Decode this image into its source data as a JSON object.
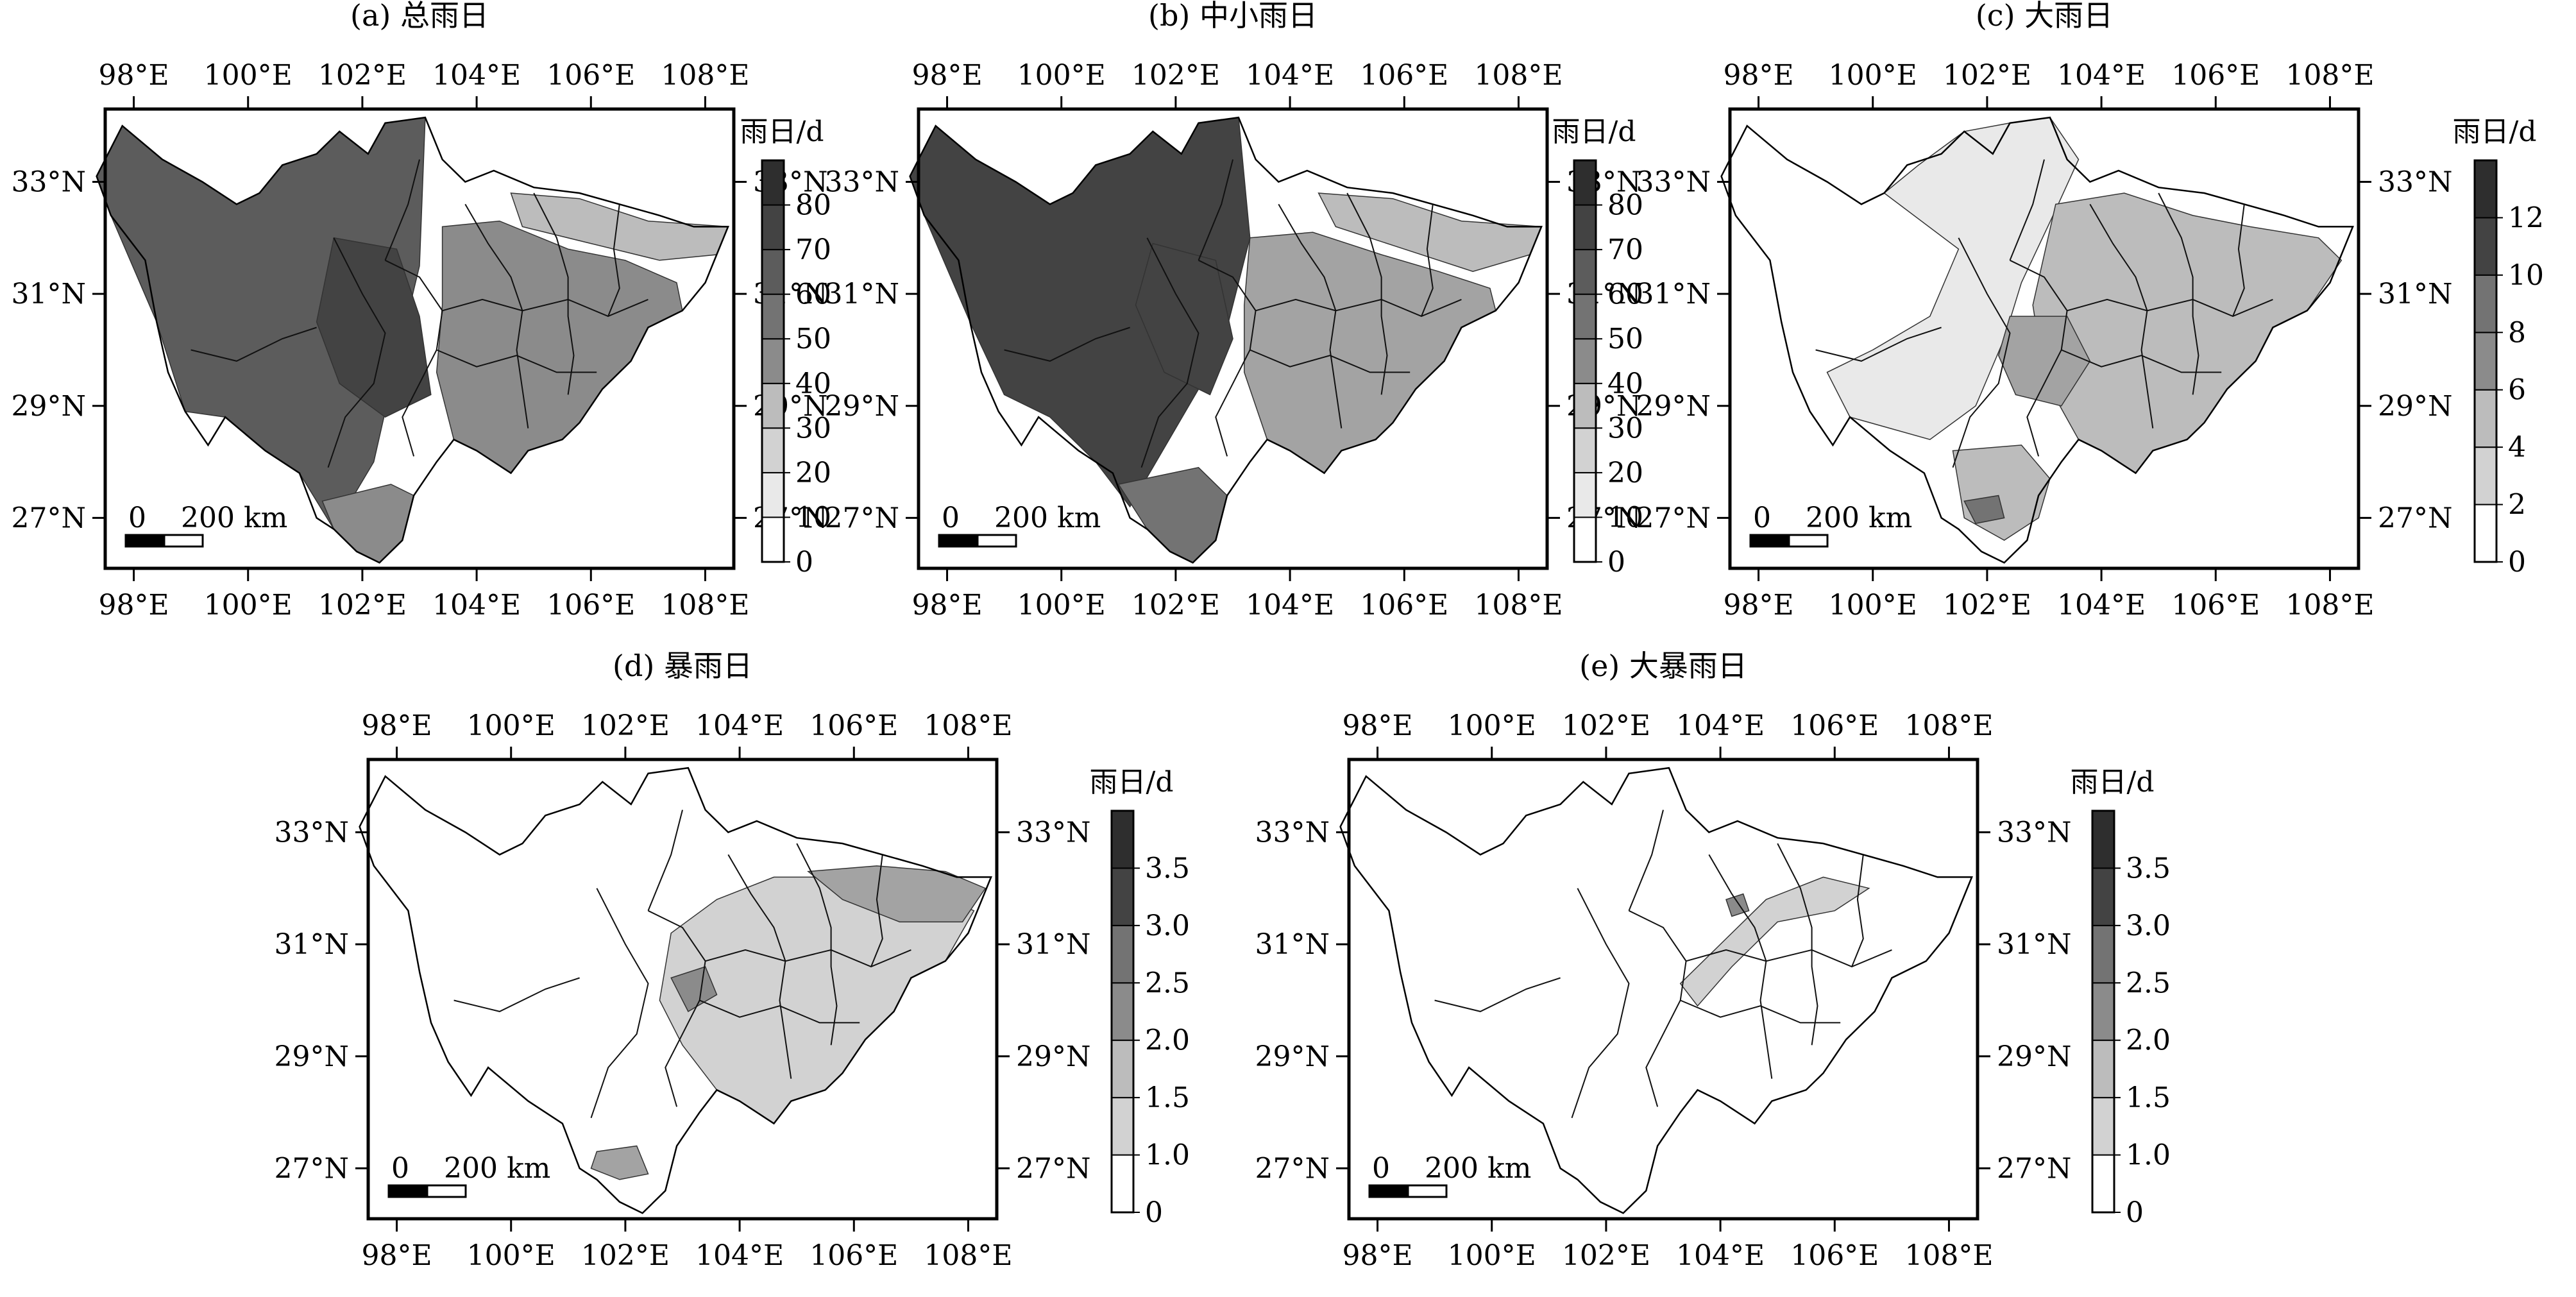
{
  "figure": {
    "lon_ticks": [
      "98°E",
      "100°E",
      "102°E",
      "104°E",
      "106°E",
      "108°E"
    ],
    "lat_ticks": [
      "33°N",
      "31°N",
      "29°N",
      "27°N"
    ],
    "colorbar_unit": "雨日/d",
    "scalebar": {
      "start_label": "0",
      "end_label": "200 km"
    }
  },
  "palette": [
    "#ffffff",
    "#e9e9e9",
    "#d2d2d2",
    "#bcbcbc",
    "#a3a3a3",
    "#8b8b8b",
    "#737373",
    "#5c5c5c",
    "#434343",
    "#2e2e2e"
  ],
  "panels": [
    {
      "id": "a",
      "title": "(a) 总雨日",
      "colorbar_ticks": [
        "0",
        "10",
        "20",
        "30",
        "40",
        "50",
        "60",
        "70",
        "80"
      ],
      "colorbar_levels": [
        0,
        10,
        20,
        30,
        40,
        50,
        60,
        70,
        80,
        90
      ],
      "zones": [
        {
          "label": "western plateau",
          "level": 7
        },
        {
          "label": "central high-value core",
          "level": 8
        },
        {
          "label": "eastern basin",
          "level": 5
        },
        {
          "label": "northeast",
          "level": 3
        },
        {
          "label": "southwest",
          "level": 5
        }
      ]
    },
    {
      "id": "b",
      "title": "(b) 中小雨日",
      "colorbar_ticks": [
        "0",
        "10",
        "20",
        "30",
        "40",
        "50",
        "60",
        "70",
        "80"
      ],
      "colorbar_levels": [
        0,
        10,
        20,
        30,
        40,
        50,
        60,
        70,
        80,
        90
      ],
      "zones": [
        {
          "label": "western plateau",
          "level": 8
        },
        {
          "label": "central high-value core",
          "level": 8
        },
        {
          "label": "eastern basin",
          "level": 4
        },
        {
          "label": "northeast",
          "level": 3
        },
        {
          "label": "southwest",
          "level": 6
        }
      ]
    },
    {
      "id": "c",
      "title": "(c) 大雨日",
      "colorbar_ticks": [
        "0",
        "2",
        "4",
        "6",
        "8",
        "10",
        "12"
      ],
      "colorbar_levels": [
        0,
        2,
        4,
        6,
        8,
        10,
        12,
        14
      ],
      "zones": [
        {
          "label": "western plateau",
          "level": 0
        },
        {
          "label": "northern tongue",
          "level": 1
        },
        {
          "label": "eastern basin",
          "level": 3
        },
        {
          "label": "western basin rim",
          "level": 4
        },
        {
          "label": "southwest",
          "level": 3
        },
        {
          "label": "southern maximum",
          "level": 6
        }
      ]
    },
    {
      "id": "d",
      "title": "(d) 暴雨日",
      "colorbar_ticks": [
        "0",
        "1.0",
        "1.5",
        "2.0",
        "2.5",
        "3.0",
        "3.5"
      ],
      "colorbar_levels": [
        0,
        1.0,
        1.5,
        2.0,
        2.5,
        3.0,
        3.5,
        4.0
      ],
      "zones": [
        {
          "label": "western plateau",
          "level": 0
        },
        {
          "label": "eastern basin",
          "level": 2
        },
        {
          "label": "northeast",
          "level": 4
        },
        {
          "label": "western basin rim",
          "level": 5
        },
        {
          "label": "southern maximum",
          "level": 4
        }
      ]
    },
    {
      "id": "e",
      "title": "(e) 大暴雨日",
      "colorbar_ticks": [
        "0",
        "1.0",
        "1.5",
        "2.0",
        "2.5",
        "3.0",
        "3.5"
      ],
      "colorbar_levels": [
        0,
        1.0,
        1.5,
        2.0,
        2.5,
        3.0,
        3.5,
        4.0
      ],
      "zones": [
        {
          "label": "western plateau",
          "level": 0
        },
        {
          "label": "northwest basin rim",
          "level": 2
        },
        {
          "label": "local maximum",
          "level": 5
        }
      ]
    }
  ]
}
